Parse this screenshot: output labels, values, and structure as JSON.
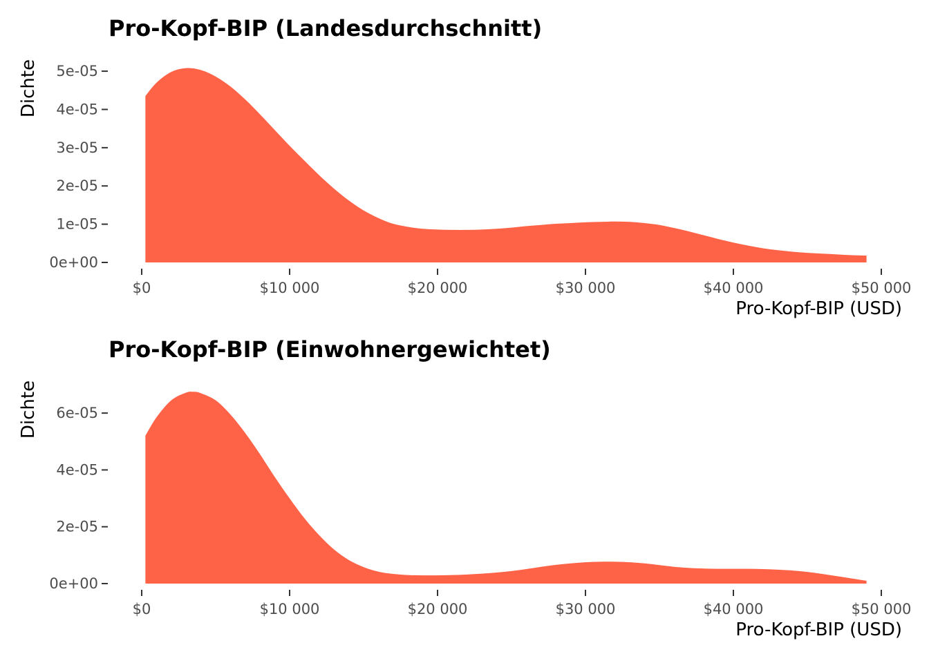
{
  "theme": {
    "fill_color": "#ff6347",
    "tick_color": "#333333",
    "text_color": "#4d4d4d"
  },
  "chart_data": [
    {
      "type": "area",
      "title": "Pro-Kopf-BIP (Landesdurchschnitt)",
      "xlabel": "Pro-Kopf-BIP (USD)",
      "ylabel": "Dichte",
      "xlim": [
        0,
        50000
      ],
      "ylim": [
        0,
        5.2e-05
      ],
      "x_ticks": [
        0,
        10000,
        20000,
        30000,
        40000,
        50000
      ],
      "x_tick_labels": [
        "$0",
        "$10 000",
        "$20 000",
        "$30 000",
        "$40 000",
        "$50 000"
      ],
      "y_ticks": [
        0,
        1e-05,
        2e-05,
        3e-05,
        4e-05,
        5e-05
      ],
      "y_tick_labels": [
        "0e+00",
        "1e-05",
        "2e-05",
        "3e-05",
        "4e-05",
        "5e-05"
      ],
      "series": [
        {
          "x": [
            250,
            1000,
            2000,
            3000,
            4000,
            5000,
            6000,
            7000,
            8000,
            9000,
            10000,
            11000,
            12000,
            13000,
            14000,
            15000,
            16000,
            17000,
            18000,
            19000,
            20000,
            21000,
            22000,
            23000,
            24000,
            25000,
            26000,
            27000,
            28000,
            29000,
            30000,
            31000,
            32000,
            33000,
            34000,
            35000,
            36000,
            37000,
            38000,
            39000,
            40000,
            41000,
            42000,
            43000,
            44000,
            45000,
            46000,
            47000,
            48000,
            49000
          ],
          "y": [
            4.35e-05,
            4.7e-05,
            4.98e-05,
            5.08e-05,
            5.03e-05,
            4.86e-05,
            4.6e-05,
            4.26e-05,
            3.87e-05,
            3.46e-05,
            3.05e-05,
            2.66e-05,
            2.28e-05,
            1.93e-05,
            1.62e-05,
            1.36e-05,
            1.16e-05,
            1.01e-05,
            9.3e-06,
            8.8e-06,
            8.6e-06,
            8.5e-06,
            8.5e-06,
            8.6e-06,
            8.8e-06,
            9.1e-06,
            9.5e-06,
            9.8e-06,
            1.01e-05,
            1.03e-05,
            1.05e-05,
            1.06e-05,
            1.07e-05,
            1.06e-05,
            1.03e-05,
            9.8e-06,
            9e-06,
            8.1e-06,
            7.1e-06,
            6.1e-06,
            5.2e-06,
            4.4e-06,
            3.7e-06,
            3.2e-06,
            2.8e-06,
            2.5e-06,
            2.3e-06,
            2.1e-06,
            1.9e-06,
            1.8e-06
          ]
        }
      ]
    },
    {
      "type": "area",
      "title": "Pro-Kopf-BIP (Einwohnergewichtet)",
      "xlabel": "Pro-Kopf-BIP (USD)",
      "ylabel": "Dichte",
      "xlim": [
        0,
        50000
      ],
      "ylim": [
        0,
        7e-05
      ],
      "x_ticks": [
        0,
        10000,
        20000,
        30000,
        40000,
        50000
      ],
      "x_tick_labels": [
        "$0",
        "$10 000",
        "$20 000",
        "$30 000",
        "$40 000",
        "$50 000"
      ],
      "y_ticks": [
        0,
        2e-05,
        4e-05,
        6e-05
      ],
      "y_tick_labels": [
        "0e+00",
        "2e-05",
        "4e-05",
        "6e-05"
      ],
      "series": [
        {
          "x": [
            250,
            1000,
            2000,
            3000,
            3500,
            4000,
            5000,
            6000,
            7000,
            8000,
            9000,
            10000,
            11000,
            12000,
            13000,
            14000,
            15000,
            16000,
            17000,
            18000,
            19000,
            20000,
            21000,
            22000,
            23000,
            24000,
            25000,
            26000,
            27000,
            28000,
            29000,
            30000,
            31000,
            32000,
            33000,
            34000,
            35000,
            36000,
            37000,
            38000,
            39000,
            40000,
            41000,
            42000,
            43000,
            44000,
            45000,
            46000,
            47000,
            48000,
            49000
          ],
          "y": [
            5.2e-05,
            5.85e-05,
            6.45e-05,
            6.72e-05,
            6.75e-05,
            6.7e-05,
            6.45e-05,
            5.95e-05,
            5.3e-05,
            4.55e-05,
            3.75e-05,
            3e-05,
            2.3e-05,
            1.7e-05,
            1.2e-05,
            8.3e-06,
            5.8e-06,
            4.2e-06,
            3.4e-06,
            3e-06,
            2.9e-06,
            2.9e-06,
            3e-06,
            3.2e-06,
            3.5e-06,
            3.9e-06,
            4.4e-06,
            5.1e-06,
            5.9e-06,
            6.6e-06,
            7.1e-06,
            7.5e-06,
            7.7e-06,
            7.7e-06,
            7.5e-06,
            7.1e-06,
            6.5e-06,
            5.9e-06,
            5.5e-06,
            5.3e-06,
            5.2e-06,
            5.2e-06,
            5.2e-06,
            5.1e-06,
            4.9e-06,
            4.6e-06,
            4.1e-06,
            3.4e-06,
            2.6e-06,
            1.8e-06,
            1e-06
          ]
        }
      ]
    }
  ]
}
